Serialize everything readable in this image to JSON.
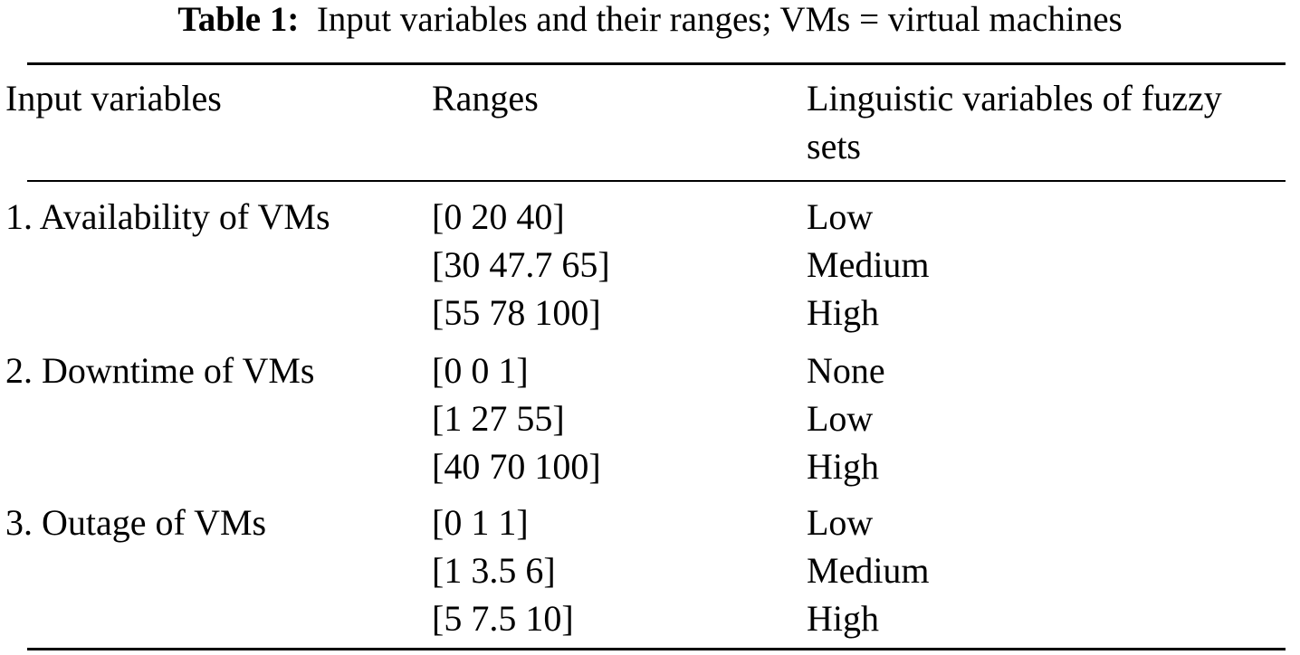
{
  "caption": {
    "label": "Table 1:",
    "text": "Input variables and their ranges; VMs = virtual machines"
  },
  "table": {
    "headers": {
      "input": "Input variables",
      "ranges": "Ranges",
      "linguistic_line1": "Linguistic variables of fuzzy",
      "linguistic_line2": "sets"
    },
    "rows": [
      {
        "variable": "1. Availability of VMs",
        "ranges": [
          "[0 20 40]",
          "[30 47.7 65]",
          "[55 78 100]"
        ],
        "levels": [
          "Low",
          "Medium",
          "High"
        ]
      },
      {
        "variable": "2. Downtime of VMs",
        "ranges": [
          "[0 0 1]",
          "[1 27 55]",
          "[40 70 100]"
        ],
        "levels": [
          "None",
          "Low",
          "High"
        ]
      },
      {
        "variable": "3. Outage of VMs",
        "ranges": [
          "[0 1 1]",
          "[1 3.5 6]",
          "[5 7.5 10]"
        ],
        "levels": [
          "Low",
          "Medium",
          "High"
        ]
      }
    ]
  }
}
